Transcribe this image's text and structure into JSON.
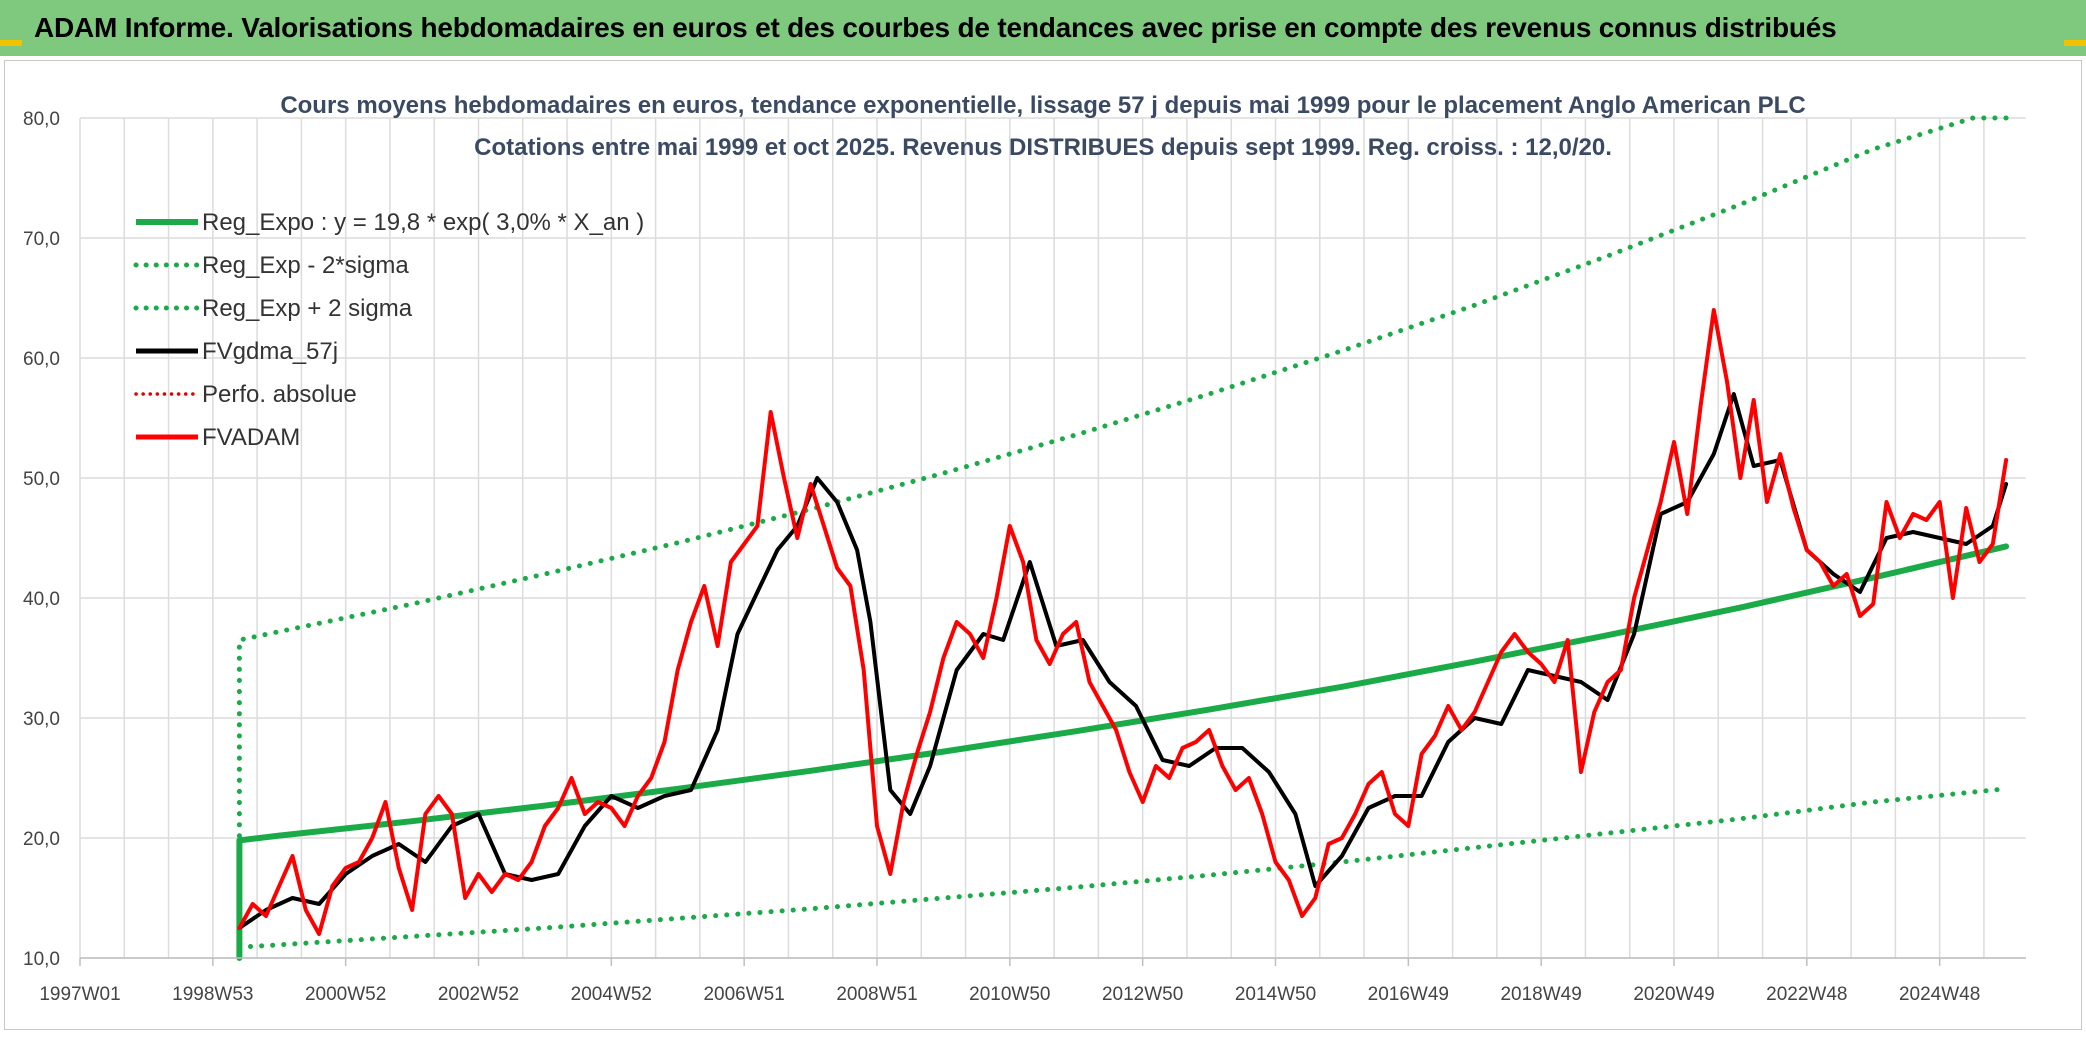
{
  "header": {
    "title": "ADAM Informe. Valorisations hebdomadaires en euros et des courbes de tendances avec prise en compte des revenus connus distribués"
  },
  "colors": {
    "banner": "#7fc97f",
    "reg_expo": "#1aab48",
    "sigma": "#1aab48",
    "fvgdma": "#000000",
    "perfo": "#e00000",
    "fvadam": "#ff0000",
    "grid": "#dcdcdc"
  },
  "chart_data": {
    "type": "line",
    "title": "Cours moyens hebdomadaires en euros, tendance exponentielle, lissage 57 j depuis mai 1999 pour le placement Anglo American PLC",
    "subtitle": "Cotations entre mai 1999 et oct 2025. Revenus DISTRIBUES depuis sept 1999. Reg. croiss. : 12,0/20.",
    "xlabel": "",
    "ylabel": "",
    "xlim": [
      1997.0,
      2026.3
    ],
    "ylim": [
      10,
      80
    ],
    "yticks": [
      10,
      20,
      30,
      40,
      50,
      60,
      70,
      80
    ],
    "ytick_labels": [
      "10,0",
      "20,0",
      "30,0",
      "40,0",
      "50,0",
      "60,0",
      "70,0",
      "80,0"
    ],
    "xticks": [
      1997.0,
      1999.0,
      2001.0,
      2003.0,
      2005.0,
      2007.0,
      2009.0,
      2011.0,
      2013.0,
      2015.0,
      2017.0,
      2019.0,
      2021.0,
      2023.0,
      2025.0
    ],
    "xtick_labels": [
      "1997W01",
      "1998W53",
      "2000W52",
      "2002W52",
      "2004W52",
      "2006W51",
      "2008W51",
      "2010W50",
      "2012W50",
      "2014W50",
      "2016W49",
      "2018W49",
      "2020W49",
      "2022W48",
      "2024W48"
    ],
    "legend": [
      {
        "label": "Reg_Expo : y = 19,8 * exp( 3,0% *  X_an )",
        "key": "reg_expo",
        "style": "solid-thick"
      },
      {
        "label": "Reg_Exp - 2*sigma",
        "key": "sigma_low",
        "style": "dotted"
      },
      {
        "label": "Reg_Exp + 2 sigma",
        "key": "sigma_high",
        "style": "dotted"
      },
      {
        "label": "FVgdma_57j",
        "key": "fvgdma",
        "style": "solid"
      },
      {
        "label": "Perfo. absolue",
        "key": "perfo",
        "style": "dotted-red"
      },
      {
        "label": "FVADAM",
        "key": "fvadam",
        "style": "solid-red"
      }
    ],
    "series": [
      {
        "name": "Reg_Expo : y = 19,8 * exp( 3,0% *  X_an )",
        "x": [
          1999.4,
          1999.4,
          2000.0,
          2002.0,
          2004.0,
          2006.0,
          2008.0,
          2010.0,
          2012.0,
          2014.0,
          2016.0,
          2018.0,
          2020.0,
          2022.0,
          2024.0,
          2026.0
        ],
        "y": [
          10.0,
          19.8,
          20.2,
          21.4,
          22.7,
          24.1,
          25.6,
          27.2,
          28.9,
          30.7,
          32.6,
          34.7,
          36.9,
          39.2,
          41.7,
          44.3
        ]
      },
      {
        "name": "Reg_Exp - 2*sigma",
        "x": [
          1999.4,
          2000.0,
          2002.0,
          2004.0,
          2006.0,
          2008.0,
          2010.0,
          2012.0,
          2014.0,
          2016.0,
          2018.0,
          2020.0,
          2022.0,
          2024.0,
          2026.0
        ],
        "y": [
          10.9,
          11.1,
          11.8,
          12.5,
          13.3,
          14.1,
          15.0,
          15.9,
          16.9,
          18.0,
          19.2,
          20.4,
          21.6,
          23.0,
          24.1
        ]
      },
      {
        "name": "Reg_Exp + 2 sigma",
        "x": [
          1999.4,
          1999.4,
          2000.0,
          2002.0,
          2004.0,
          2006.0,
          2008.0,
          2010.0,
          2012.0,
          2014.0,
          2016.0,
          2018.0,
          2020.0,
          2022.0,
          2024.0,
          2025.5,
          2026.0
        ],
        "y": [
          10.0,
          36.5,
          37.2,
          39.5,
          42.0,
          44.6,
          47.4,
          50.4,
          53.6,
          57.0,
          60.6,
          64.4,
          68.5,
          72.8,
          77.4,
          80.0,
          80.0
        ]
      },
      {
        "name": "FVgdma_57j",
        "x": [
          1999.4,
          1999.8,
          2000.2,
          2000.6,
          2001.0,
          2001.4,
          2001.8,
          2002.2,
          2002.6,
          2003.0,
          2003.4,
          2003.8,
          2004.2,
          2004.6,
          2005.0,
          2005.4,
          2005.8,
          2006.2,
          2006.6,
          2006.9,
          2007.2,
          2007.5,
          2007.8,
          2008.1,
          2008.4,
          2008.7,
          2008.9,
          2009.2,
          2009.5,
          2009.8,
          2010.2,
          2010.6,
          2010.9,
          2011.3,
          2011.7,
          2012.1,
          2012.5,
          2012.9,
          2013.3,
          2013.7,
          2014.1,
          2014.5,
          2014.9,
          2015.3,
          2015.6,
          2016.0,
          2016.4,
          2016.8,
          2017.2,
          2017.6,
          2018.0,
          2018.4,
          2018.8,
          2019.2,
          2019.6,
          2020.0,
          2020.4,
          2020.8,
          2021.2,
          2021.6,
          2021.9,
          2022.2,
          2022.6,
          2023.0,
          2023.4,
          2023.8,
          2024.2,
          2024.6,
          2025.0,
          2025.4,
          2025.8,
          2026.0
        ],
        "y": [
          12.5,
          14.0,
          15.0,
          14.5,
          17.0,
          18.5,
          19.5,
          18.0,
          21.0,
          22.0,
          17.0,
          16.5,
          17.0,
          21.0,
          23.5,
          22.5,
          23.5,
          24.0,
          29.0,
          37.0,
          40.5,
          44.0,
          46.0,
          50.0,
          48.0,
          44.0,
          38.0,
          24.0,
          22.0,
          26.0,
          34.0,
          37.0,
          36.5,
          43.0,
          36.0,
          36.5,
          33.0,
          31.0,
          26.5,
          26.0,
          27.5,
          27.5,
          25.5,
          22.0,
          16.0,
          18.5,
          22.5,
          23.5,
          23.5,
          28.0,
          30.0,
          29.5,
          34.0,
          33.5,
          33.0,
          31.5,
          37.0,
          47.0,
          48.0,
          52.0,
          57.0,
          51.0,
          51.5,
          44.0,
          42.0,
          40.5,
          45.0,
          45.5,
          45.0,
          44.5,
          46.0,
          49.5
        ]
      },
      {
        "name": "FVADAM",
        "x": [
          1999.4,
          1999.6,
          1999.8,
          2000.0,
          2000.2,
          2000.4,
          2000.6,
          2000.8,
          2001.0,
          2001.2,
          2001.4,
          2001.6,
          2001.8,
          2002.0,
          2002.2,
          2002.4,
          2002.6,
          2002.8,
          2003.0,
          2003.2,
          2003.4,
          2003.6,
          2003.8,
          2004.0,
          2004.2,
          2004.4,
          2004.6,
          2004.8,
          2005.0,
          2005.2,
          2005.4,
          2005.6,
          2005.8,
          2006.0,
          2006.2,
          2006.4,
          2006.6,
          2006.8,
          2007.0,
          2007.2,
          2007.4,
          2007.6,
          2007.8,
          2008.0,
          2008.2,
          2008.4,
          2008.6,
          2008.8,
          2009.0,
          2009.2,
          2009.4,
          2009.6,
          2009.8,
          2010.0,
          2010.2,
          2010.4,
          2010.6,
          2010.8,
          2011.0,
          2011.2,
          2011.4,
          2011.6,
          2011.8,
          2012.0,
          2012.2,
          2012.4,
          2012.6,
          2012.8,
          2013.0,
          2013.2,
          2013.4,
          2013.6,
          2013.8,
          2014.0,
          2014.2,
          2014.4,
          2014.6,
          2014.8,
          2015.0,
          2015.2,
          2015.4,
          2015.6,
          2015.8,
          2016.0,
          2016.2,
          2016.4,
          2016.6,
          2016.8,
          2017.0,
          2017.2,
          2017.4,
          2017.6,
          2017.8,
          2018.0,
          2018.2,
          2018.4,
          2018.6,
          2018.8,
          2019.0,
          2019.2,
          2019.4,
          2019.6,
          2019.8,
          2020.0,
          2020.2,
          2020.4,
          2020.6,
          2020.8,
          2021.0,
          2021.2,
          2021.4,
          2021.6,
          2021.8,
          2022.0,
          2022.2,
          2022.4,
          2022.6,
          2022.8,
          2023.0,
          2023.2,
          2023.4,
          2023.6,
          2023.8,
          2024.0,
          2024.2,
          2024.4,
          2024.6,
          2024.8,
          2025.0,
          2025.2,
          2025.4,
          2025.6,
          2025.8,
          2026.0
        ],
        "y": [
          12.5,
          14.5,
          13.5,
          16.0,
          18.5,
          14.0,
          12.0,
          16.0,
          17.5,
          18.0,
          20.0,
          23.0,
          17.5,
          14.0,
          22.0,
          23.5,
          22.0,
          15.0,
          17.0,
          15.5,
          17.0,
          16.5,
          18.0,
          21.0,
          22.5,
          25.0,
          22.0,
          23.0,
          22.5,
          21.0,
          23.5,
          25.0,
          28.0,
          34.0,
          38.0,
          41.0,
          36.0,
          43.0,
          44.5,
          46.0,
          55.5,
          50.0,
          45.0,
          49.5,
          46.0,
          42.5,
          41.0,
          34.0,
          21.0,
          17.0,
          23.0,
          27.0,
          30.5,
          35.0,
          38.0,
          37.0,
          35.0,
          40.0,
          46.0,
          43.0,
          36.5,
          34.5,
          37.0,
          38.0,
          33.0,
          31.0,
          29.0,
          25.5,
          23.0,
          26.0,
          25.0,
          27.5,
          28.0,
          29.0,
          26.0,
          24.0,
          25.0,
          22.0,
          18.0,
          16.5,
          13.5,
          15.0,
          19.5,
          20.0,
          22.0,
          24.5,
          25.5,
          22.0,
          21.0,
          27.0,
          28.5,
          31.0,
          29.0,
          30.5,
          33.0,
          35.5,
          37.0,
          35.5,
          34.5,
          33.0,
          36.5,
          25.5,
          30.5,
          33.0,
          34.0,
          40.0,
          44.0,
          48.0,
          53.0,
          47.0,
          56.0,
          64.0,
          58.0,
          50.0,
          56.5,
          48.0,
          52.0,
          47.5,
          44.0,
          43.0,
          41.0,
          42.0,
          38.5,
          39.5,
          48.0,
          45.0,
          47.0,
          46.5,
          48.0,
          40.0,
          47.5,
          43.0,
          44.5,
          51.5
        ]
      }
    ]
  }
}
